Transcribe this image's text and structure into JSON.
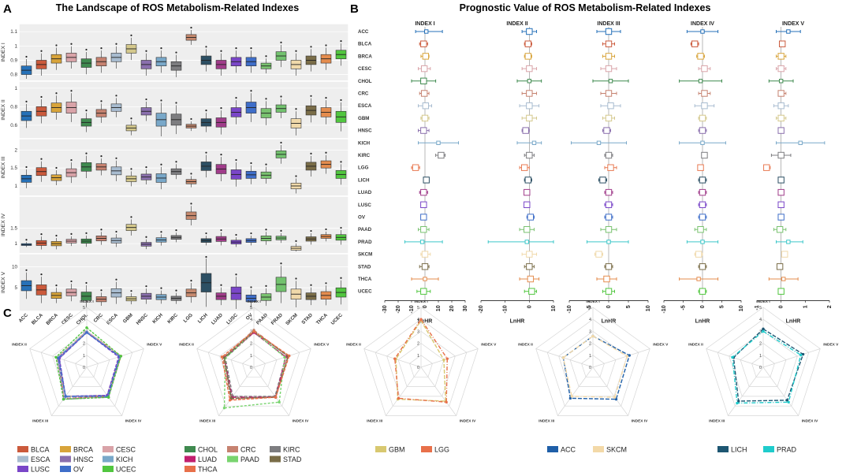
{
  "labels": {
    "a": "A",
    "b": "B",
    "c": "C"
  },
  "panel_a": {
    "title": "The Landscape of ROS Metabolism-Related Indexes",
    "categories": [
      "ACC",
      "BLCA",
      "BRCA",
      "CESC",
      "CHOL",
      "CRC",
      "ESCA",
      "GBM",
      "HNSC",
      "KICH",
      "KIRC",
      "LGG",
      "LICH",
      "LUAD",
      "LUSC",
      "OV",
      "PAAD",
      "PRAD",
      "SKCM",
      "STAD",
      "THCA",
      "UCEC"
    ],
    "colors": [
      "#2671b8",
      "#cb5a3c",
      "#d8a43a",
      "#d9a3a8",
      "#3f8a4f",
      "#c68270",
      "#a8bcd0",
      "#d4c88c",
      "#8a6fad",
      "#79a8c9",
      "#7d7d80",
      "#c6896e",
      "#2c4f63",
      "#a03c8a",
      "#7a46c8",
      "#3f6ec9",
      "#79c26f",
      "#72c26e",
      "#f0d9aa",
      "#7a6d48",
      "#e48c4e",
      "#51c63f"
    ],
    "rows": [
      {
        "label": "INDEX I",
        "ticks": [
          0.8,
          0.9,
          1.0,
          1.1
        ],
        "ylim": [
          0.77,
          1.14
        ],
        "medians": [
          0.83,
          0.87,
          0.91,
          0.92,
          0.88,
          0.89,
          0.92,
          0.98,
          0.87,
          0.89,
          0.86,
          1.06,
          0.9,
          0.87,
          0.89,
          0.89,
          0.86,
          0.93,
          0.87,
          0.9,
          0.91,
          0.94
        ],
        "spread": [
          0.03,
          0.03,
          0.03,
          0.03,
          0.03,
          0.03,
          0.03,
          0.03,
          0.03,
          0.03,
          0.03,
          0.02,
          0.03,
          0.03,
          0.03,
          0.03,
          0.02,
          0.03,
          0.03,
          0.03,
          0.03,
          0.03
        ]
      },
      {
        "label": "INDEX II",
        "ticks": [
          0.6,
          0.8,
          1.0
        ],
        "ylim": [
          0.48,
          1.05
        ],
        "medians": [
          0.7,
          0.75,
          0.79,
          0.79,
          0.63,
          0.73,
          0.79,
          0.57,
          0.75,
          0.66,
          0.66,
          0.59,
          0.63,
          0.63,
          0.74,
          0.79,
          0.73,
          0.78,
          0.62,
          0.76,
          0.74,
          0.69
        ],
        "spread": [
          0.05,
          0.05,
          0.05,
          0.06,
          0.04,
          0.04,
          0.04,
          0.03,
          0.04,
          0.07,
          0.06,
          0.02,
          0.04,
          0.05,
          0.05,
          0.06,
          0.05,
          0.04,
          0.05,
          0.05,
          0.05,
          0.06
        ]
      },
      {
        "label": "INDEX III",
        "ticks": [
          1.0,
          1.5,
          2.0
        ],
        "ylim": [
          0.78,
          2.25
        ],
        "medians": [
          1.2,
          1.4,
          1.23,
          1.37,
          1.53,
          1.53,
          1.42,
          1.2,
          1.25,
          1.22,
          1.4,
          1.12,
          1.55,
          1.47,
          1.32,
          1.31,
          1.3,
          1.88,
          1.0,
          1.55,
          1.6,
          1.32
        ],
        "spread": [
          0.1,
          0.11,
          0.08,
          0.11,
          0.12,
          0.09,
          0.11,
          0.08,
          0.08,
          0.12,
          0.08,
          0.06,
          0.12,
          0.13,
          0.13,
          0.1,
          0.09,
          0.1,
          0.08,
          0.11,
          0.1,
          0.11
        ]
      },
      {
        "label": "INDEX IV",
        "ticks": [
          1.0,
          1.5
        ],
        "ylim": [
          0.75,
          2.45
        ],
        "medians": [
          0.97,
          1.02,
          1.0,
          1.08,
          1.08,
          1.17,
          1.1,
          1.52,
          0.98,
          1.12,
          1.2,
          1.9,
          1.1,
          1.15,
          1.05,
          1.1,
          1.17,
          1.18,
          0.85,
          1.15,
          1.23,
          1.2
        ],
        "spread": [
          0.03,
          0.08,
          0.07,
          0.06,
          0.07,
          0.08,
          0.08,
          0.1,
          0.06,
          0.07,
          0.06,
          0.12,
          0.06,
          0.08,
          0.06,
          0.06,
          0.08,
          0.06,
          0.06,
          0.07,
          0.06,
          0.09
        ]
      },
      {
        "label": "INDEX V",
        "ticks": [
          5,
          10
        ],
        "ylim": [
          0,
          12.5
        ],
        "medians": [
          5.5,
          4.5,
          3.2,
          3.9,
          3.0,
          2.3,
          3.8,
          2.4,
          3.0,
          2.8,
          2.5,
          3.8,
          6.2,
          3.0,
          3.7,
          2.5,
          2.8,
          5.8,
          3.5,
          3.0,
          3.2,
          3.9
        ],
        "spread": [
          1.2,
          1.2,
          0.7,
          0.8,
          1.0,
          0.6,
          1.0,
          0.5,
          0.7,
          0.6,
          0.5,
          0.9,
          2.2,
          0.8,
          1.5,
          0.8,
          0.8,
          1.7,
          1.2,
          0.8,
          0.9,
          1.1
        ]
      }
    ]
  },
  "panel_b": {
    "title": "Prognostic Value of ROS Metabolism-Related Indexes",
    "categories": [
      "ACC",
      "BLCA",
      "BRCA",
      "CESC",
      "CHOL",
      "CRC",
      "ESCA",
      "GBM",
      "HNSC",
      "KICH",
      "KIRC",
      "LGG",
      "LICH",
      "LUAD",
      "LUSC",
      "OV",
      "PAAD",
      "PRAD",
      "SKCM",
      "STAD",
      "THCA",
      "UCEC"
    ],
    "colors": [
      "#2671b8",
      "#cb5a3c",
      "#d8a43a",
      "#d9a3a8",
      "#3f8a4f",
      "#c68270",
      "#a8bcd0",
      "#d4c88c",
      "#8a6fad",
      "#79a8c9",
      "#7d7d80",
      "#e87a52",
      "#2c4f63",
      "#a03c8a",
      "#7a46c8",
      "#3f6ec9",
      "#79c26f",
      "#3dc7c9",
      "#f0d9aa",
      "#7a6d48",
      "#e48c4e",
      "#51c63f"
    ],
    "xlabel": "LnHR",
    "forests": [
      {
        "title": "INDEX I",
        "xlim": [
          -30,
          30
        ],
        "ticks": [
          -30,
          -20,
          -10,
          0,
          10,
          20,
          30
        ],
        "hr": [
          1,
          -1,
          0.5,
          -0.5,
          -1,
          -0.5,
          0.5,
          0,
          -1,
          10,
          12,
          -7,
          1,
          -1,
          -1,
          -1,
          -1,
          -2,
          0,
          0,
          0,
          -1
        ],
        "lo": [
          -7,
          -4,
          -3,
          -5,
          -10,
          -4,
          -5,
          -3,
          -5,
          -5,
          8,
          -10,
          -1,
          -4,
          -3,
          -3,
          -5,
          -15,
          -3,
          -4,
          -10,
          -6
        ],
        "hi": [
          13,
          2,
          3,
          4,
          8,
          3,
          5,
          3,
          3,
          25,
          15,
          -4,
          3,
          2,
          1,
          1,
          3,
          13,
          4,
          3,
          10,
          4
        ]
      },
      {
        "title": "INDEX II",
        "xlim": [
          -20,
          10
        ],
        "ticks": [
          -20,
          -10,
          0,
          10
        ],
        "hr": [
          0,
          -0.5,
          -0.5,
          0,
          0,
          0,
          0,
          0,
          -1.5,
          2,
          0,
          -2,
          -0.5,
          -1,
          -1,
          0.5,
          -1,
          -1,
          0,
          0,
          0.5,
          1
        ],
        "lo": [
          -3,
          -2,
          -2,
          -3,
          -5,
          -3,
          -4,
          -3,
          -3,
          -5,
          -2,
          -4,
          -2,
          -2,
          -2,
          -1,
          -4,
          -17,
          -3,
          -2,
          -4,
          -2
        ],
        "hi": [
          3,
          1,
          1,
          3,
          5,
          3,
          4,
          3,
          0,
          5,
          2,
          0,
          1,
          0,
          0,
          2,
          2,
          15,
          3,
          2,
          4,
          3
        ]
      },
      {
        "title": "INDEX III",
        "xlim": [
          -10,
          10
        ],
        "ticks": [
          -10,
          -5,
          0,
          5,
          10
        ],
        "hr": [
          0,
          0,
          0,
          0,
          0.5,
          0,
          0.5,
          0,
          -0.5,
          -2.5,
          0,
          0.5,
          -1.5,
          0,
          0,
          0,
          0,
          0,
          -2.5,
          0,
          -0.5,
          0
        ],
        "lo": [
          -3,
          -1.5,
          -1.5,
          -2,
          -4,
          -2,
          -2,
          -1.5,
          -1.5,
          -9.5,
          -1,
          -1,
          -2.5,
          -1,
          -1,
          -1,
          -2,
          -5.5,
          -3.5,
          -1,
          -3,
          -1.5
        ],
        "hi": [
          3,
          1.5,
          1.5,
          2,
          5,
          2,
          3,
          1.5,
          0.5,
          4.5,
          1,
          2,
          -0.5,
          1,
          1,
          1,
          2,
          5,
          -1.5,
          1,
          2,
          1.5
        ]
      },
      {
        "title": "INDEX IV",
        "xlim": [
          -10,
          10
        ],
        "ticks": [
          -10,
          -5,
          0,
          5,
          10
        ],
        "hr": [
          0,
          -2,
          -0.5,
          0.5,
          -0.5,
          0.5,
          0.5,
          0,
          0,
          0,
          0.5,
          -0.5,
          0,
          0,
          0,
          0,
          -0.5,
          0,
          -1,
          0,
          -1,
          0
        ],
        "lo": [
          -4,
          -3,
          -1.5,
          -1,
          -6,
          -1,
          -2,
          -1,
          -1,
          -6,
          0,
          -1,
          -1,
          -1,
          -1,
          -1,
          -2,
          -4,
          -2,
          -1,
          -6,
          -1
        ],
        "hi": [
          4,
          -1,
          0.5,
          2,
          5,
          2,
          3,
          1,
          1,
          6,
          1,
          0,
          1,
          1,
          1,
          1,
          1,
          4,
          0,
          1,
          4,
          1
        ]
      },
      {
        "title": "INDEX V",
        "xlim": [
          -1,
          2
        ],
        "ticks": [
          -1,
          0,
          1,
          2
        ],
        "hr": [
          0.3,
          0.05,
          0,
          0,
          0,
          0,
          0,
          0,
          0,
          0.8,
          0,
          -0.6,
          0,
          0,
          0,
          0,
          -0.05,
          0.3,
          0.15,
          -0.05,
          0.1,
          0
        ],
        "lo": [
          -0.2,
          -0.05,
          -0.2,
          -0.2,
          -0.5,
          -0.1,
          -0.3,
          -0.2,
          -0.1,
          -0.2,
          -0.4,
          -0.7,
          -0.05,
          -0.05,
          -0.05,
          -0.05,
          -0.3,
          -0.2,
          0.05,
          -0.15,
          -0.5,
          -0.1
        ],
        "hi": [
          0.8,
          0.15,
          0.2,
          0.2,
          0.5,
          0.2,
          0.3,
          0.2,
          0.1,
          1.8,
          0.4,
          -0.45,
          0.05,
          0.05,
          0.05,
          0.1,
          0.2,
          0.9,
          0.2,
          0.05,
          0.7,
          0.1
        ]
      }
    ]
  },
  "panel_c": {
    "axes": [
      "INDEX I",
      "INDEX V",
      "INDEX IV",
      "INDEX III",
      "INDEX II"
    ],
    "ticks": [
      "0",
      "1",
      "2",
      "3",
      "4",
      "5"
    ],
    "max": 5,
    "radars": [
      {
        "series": [
          {
            "name": "BLCA",
            "color": "#cb5a3c",
            "values": [
              3.0,
              3.0,
              3.0,
              3.2,
              2.6
            ]
          },
          {
            "name": "BRCA",
            "color": "#d8a43a",
            "values": [
              3.0,
              2.9,
              2.9,
              3.0,
              2.6
            ]
          },
          {
            "name": "CESC",
            "color": "#d9a3a8",
            "values": [
              3.0,
              3.0,
              3.1,
              3.2,
              2.6
            ]
          },
          {
            "name": "ESCA",
            "color": "#a8bcd0",
            "values": [
              3.0,
              2.9,
              2.9,
              3.1,
              2.6
            ]
          },
          {
            "name": "HNSC",
            "color": "#8a6fad",
            "values": [
              2.9,
              2.9,
              3.1,
              3.3,
              2.5
            ]
          },
          {
            "name": "KICH",
            "color": "#79a8c9",
            "values": [
              2.9,
              2.9,
              2.9,
              3.0,
              2.4
            ]
          },
          {
            "name": "LUSC",
            "color": "#7a46c8",
            "values": [
              2.9,
              2.8,
              2.9,
              3.0,
              2.4
            ]
          },
          {
            "name": "OV",
            "color": "#3f6ec9",
            "values": [
              2.9,
              2.9,
              3.0,
              3.0,
              2.5
            ]
          },
          {
            "name": "UCEC",
            "color": "#51c63f",
            "values": [
              3.3,
              3.0,
              3.1,
              3.3,
              2.7
            ]
          }
        ]
      },
      {
        "series": [
          {
            "name": "CHOL",
            "color": "#3f8a4f",
            "values": [
              3.0,
              3.0,
              3.1,
              3.2,
              2.6
            ]
          },
          {
            "name": "CRC",
            "color": "#c68270",
            "values": [
              3.1,
              3.0,
              3.0,
              3.3,
              2.7
            ]
          },
          {
            "name": "KIRC",
            "color": "#7d7d80",
            "values": [
              2.9,
              2.8,
              3.0,
              3.0,
              2.5
            ]
          },
          {
            "name": "LUAD",
            "color": "#c21f6e",
            "values": [
              2.9,
              2.8,
              3.1,
              3.1,
              2.6
            ]
          },
          {
            "name": "PAAD",
            "color": "#79d46f",
            "values": [
              3.0,
              2.7,
              3.6,
              4.2,
              2.5
            ]
          },
          {
            "name": "STAD",
            "color": "#7a6d48",
            "values": [
              3.0,
              3.0,
              3.1,
              3.2,
              2.6
            ]
          },
          {
            "name": "THCA",
            "color": "#e8704a",
            "values": [
              3.0,
              3.1,
              3.1,
              3.4,
              2.8
            ]
          }
        ]
      },
      {
        "series": [
          {
            "name": "GBM",
            "color": "#d8c870",
            "values": [
              3.9,
              2.0,
              3.5,
              3.3,
              2.2
            ]
          },
          {
            "name": "LGG",
            "color": "#e8704a",
            "values": [
              4.0,
              2.3,
              3.6,
              3.2,
              2.3
            ]
          }
        ]
      },
      {
        "series": [
          {
            "name": "ACC",
            "color": "#1f5fa8",
            "values": [
              2.6,
              3.2,
              3.3,
              3.2,
              2.6
            ]
          },
          {
            "name": "SKCM",
            "color": "#f3d9a8",
            "values": [
              2.6,
              3.0,
              3.1,
              3.0,
              2.6
            ]
          }
        ]
      },
      {
        "series": [
          {
            "name": "LICH",
            "color": "#1d5672",
            "values": [
              3.2,
              3.5,
              3.4,
              3.5,
              2.6
            ]
          },
          {
            "name": "PRAD",
            "color": "#1fcccc",
            "values": [
              3.0,
              3.3,
              3.6,
              3.7,
              2.7
            ]
          }
        ]
      }
    ]
  }
}
